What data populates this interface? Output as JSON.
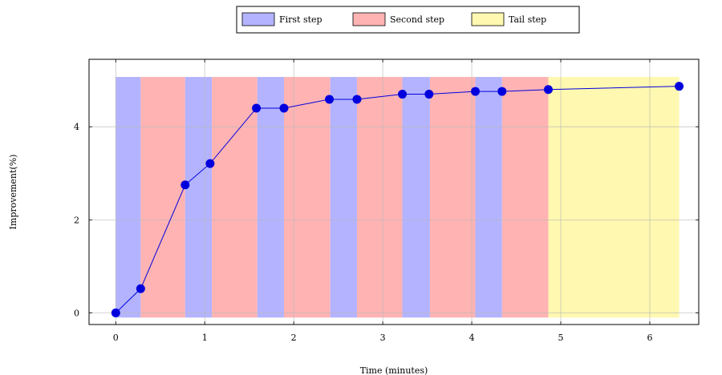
{
  "chart_data": {
    "type": "line",
    "xlabel": "Time (minutes)",
    "ylabel": "Improvement(%)",
    "xlim": [
      -0.3,
      6.55
    ],
    "ylim": [
      -0.25,
      5.45
    ],
    "xticks": [
      0,
      1,
      2,
      3,
      4,
      5,
      6
    ],
    "yticks": [
      0,
      2,
      4
    ],
    "grid": true,
    "legend_position": "top-center",
    "legend": [
      {
        "label": "First step",
        "color": "#b3b3ff",
        "border": "#5050d0"
      },
      {
        "label": "Second step",
        "color": "#ffb3b3",
        "border": "#d05050"
      },
      {
        "label": "Tail step",
        "color": "#fff8b0",
        "border": "#c0b040"
      }
    ],
    "band_top": 5.07,
    "band_bottom": -0.1,
    "bands": [
      {
        "step": "first",
        "start": 0.0,
        "end": 0.28
      },
      {
        "step": "second",
        "start": 0.28,
        "end": 0.78
      },
      {
        "step": "first",
        "start": 0.78,
        "end": 1.08
      },
      {
        "step": "second",
        "start": 1.08,
        "end": 1.59
      },
      {
        "step": "first",
        "start": 1.59,
        "end": 1.89
      },
      {
        "step": "second",
        "start": 1.89,
        "end": 2.41
      },
      {
        "step": "first",
        "start": 2.41,
        "end": 2.71
      },
      {
        "step": "second",
        "start": 2.71,
        "end": 3.22
      },
      {
        "step": "first",
        "start": 3.22,
        "end": 3.53
      },
      {
        "step": "second",
        "start": 3.53,
        "end": 4.04
      },
      {
        "step": "first",
        "start": 4.04,
        "end": 4.34
      },
      {
        "step": "second",
        "start": 4.34,
        "end": 4.86
      },
      {
        "step": "tail",
        "start": 4.86,
        "end": 6.33
      }
    ],
    "series": [
      {
        "color": "#0000dd",
        "x": [
          0.0,
          0.28,
          0.78,
          1.06,
          1.58,
          1.89,
          2.4,
          2.71,
          3.22,
          3.52,
          4.04,
          4.34,
          4.86,
          6.33
        ],
        "y": [
          0.0,
          0.52,
          2.75,
          3.21,
          4.4,
          4.4,
          4.59,
          4.59,
          4.7,
          4.7,
          4.76,
          4.76,
          4.8,
          4.87
        ]
      }
    ]
  }
}
